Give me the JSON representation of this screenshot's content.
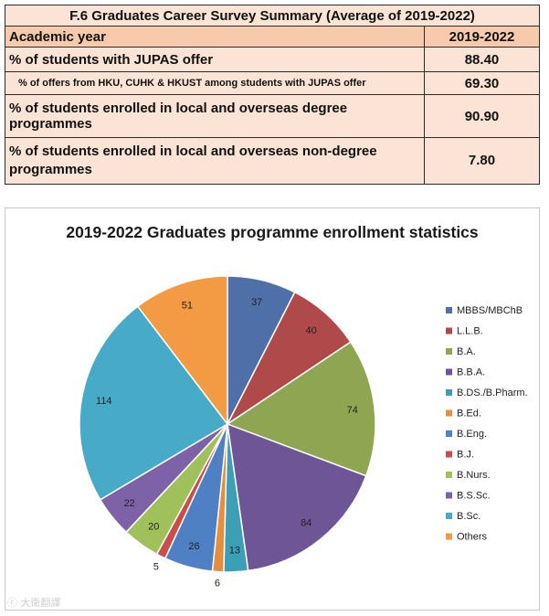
{
  "summary": {
    "title": "F.6 Graduates Career Survey Summary (Average of 2019-2022)",
    "header": {
      "label": "Academic year",
      "value": "2019-2022"
    },
    "rows": [
      {
        "label": "% of students with JUPAS offer",
        "value": "88.40"
      },
      {
        "label": "% of  offers from HKU, CUHK & HKUST among students with JUPAS offer",
        "value": "69.30"
      },
      {
        "label": "% of students enrolled in local and overseas degree programmes",
        "value": "90.90"
      },
      {
        "label": "% of students enrolled in local and overseas non-degree programmes",
        "value": "7.80"
      }
    ]
  },
  "chart_data": {
    "type": "pie",
    "title": "2019-2022 Graduates programme enrollment statistics",
    "legend_position": "right",
    "categories": [
      "MBBS/MBChB",
      "L.L.B.",
      "B.A.",
      "B.B.A.",
      "B.DS./B.Pharm.",
      "B.Ed.",
      "B.Eng.",
      "B.J.",
      "B.Nurs.",
      "B.S.Sc.",
      "B.Sc.",
      "Others"
    ],
    "values": [
      37,
      40,
      74,
      84,
      13,
      6,
      26,
      5,
      20,
      22,
      114,
      51
    ],
    "colors": [
      "#4f6fa8",
      "#b04a4a",
      "#8ea552",
      "#6e5595",
      "#3d9fb5",
      "#e58e40",
      "#4f80c3",
      "#c84e4b",
      "#9fc05a",
      "#7e62a8",
      "#47aac6",
      "#f39a45"
    ]
  },
  "watermark": "ⓒ 大衛翻譯"
}
